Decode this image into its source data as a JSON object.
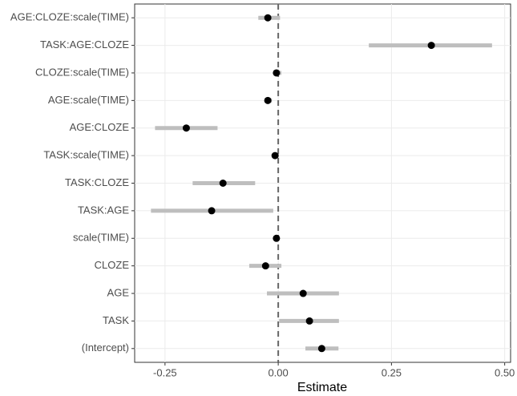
{
  "chart_data": {
    "type": "pointrange",
    "x_label": "Estimate",
    "categories": [
      "AGE:CLOZE:scale(TIME)",
      "TASK:AGE:CLOZE",
      "CLOZE:scale(TIME)",
      "AGE:scale(TIME)",
      "AGE:CLOZE",
      "TASK:scale(TIME)",
      "TASK:CLOZE",
      "TASK:AGE",
      "scale(TIME)",
      "CLOZE",
      "AGE",
      "TASK",
      "(Intercept)"
    ],
    "values": [
      -0.023,
      0.338,
      -0.004,
      -0.023,
      -0.203,
      -0.007,
      -0.122,
      -0.147,
      -0.004,
      -0.028,
      0.055,
      0.069,
      0.096
    ],
    "lower": [
      -0.044,
      0.2,
      -0.009,
      -0.028,
      -0.272,
      -0.012,
      -0.189,
      -0.281,
      -0.007,
      -0.064,
      -0.025,
      0.002,
      0.06
    ],
    "upper": [
      0.004,
      0.472,
      0.007,
      -0.014,
      -0.134,
      0,
      -0.051,
      -0.011,
      0.002,
      0.007,
      0.134,
      0.134,
      0.133
    ],
    "point_color": "#000000",
    "interval_color": "#bebebe",
    "xlim": [
      -0.317,
      0.513
    ],
    "xticks": [
      -0.25,
      {
        "value": 0,
        "label": "0.00"
      },
      0.25,
      {
        "value": 0.5,
        "label": "0.50"
      }
    ],
    "reference_line": 0,
    "grid": true
  }
}
